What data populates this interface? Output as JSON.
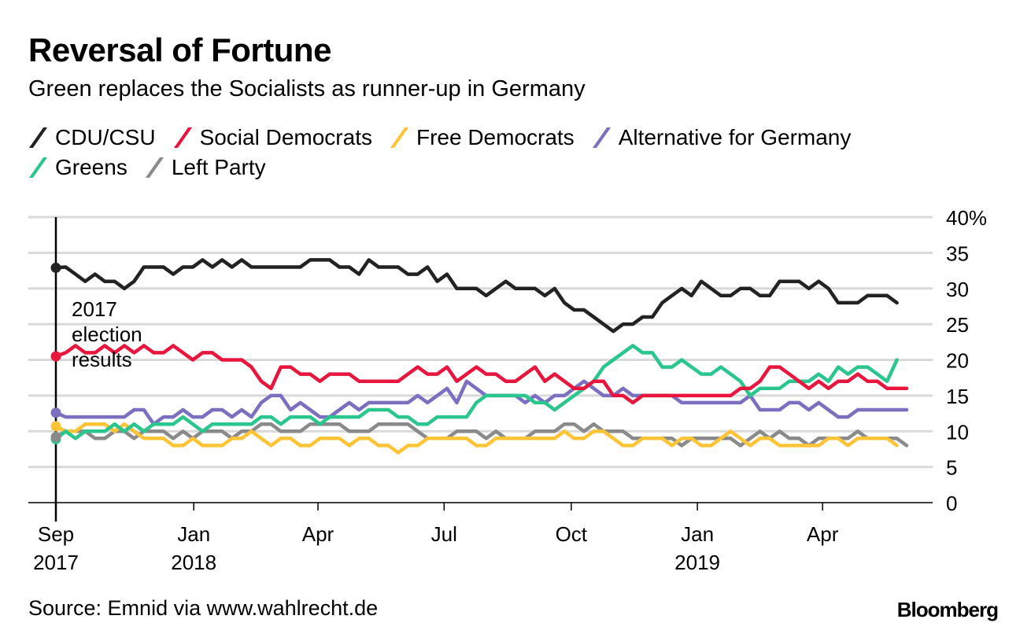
{
  "chart_data": {
    "type": "line",
    "title": "Reversal of Fortune",
    "subtitle": "Green replaces the Socialists as runner-up in Germany",
    "xlabel": "",
    "ylabel": "",
    "ylim": [
      0,
      40
    ],
    "yticks": [
      0,
      5,
      10,
      15,
      20,
      25,
      30,
      35,
      40
    ],
    "ytick_labels": [
      "0",
      "5",
      "10",
      "15",
      "20",
      "25",
      "30",
      "35",
      "40%"
    ],
    "grid": true,
    "legend_position": "top-left",
    "x_unit": "weekly poll index (0 = Sep 2017 election)",
    "xticks": [
      {
        "index": 0,
        "label": "Sep",
        "sublabel": "2017"
      },
      {
        "index": 14.1,
        "label": "Jan",
        "sublabel": "2018"
      },
      {
        "index": 26.8,
        "label": "Apr",
        "sublabel": ""
      },
      {
        "index": 39.7,
        "label": "Jul",
        "sublabel": ""
      },
      {
        "index": 52.7,
        "label": "Oct",
        "sublabel": ""
      },
      {
        "index": 65.6,
        "label": "Jan",
        "sublabel": "2019"
      },
      {
        "index": 78.4,
        "label": "Apr",
        "sublabel": ""
      }
    ],
    "annotation": {
      "index": 0,
      "lines": [
        "2017",
        "election",
        "results"
      ]
    },
    "election_results": {
      "CDU/CSU": 32.9,
      "Social Democrats": 20.5,
      "Free Democrats": 10.7,
      "Alternative for Germany": 12.6,
      "Greens": 8.9,
      "Left Party": 9.2
    },
    "series": [
      {
        "name": "CDU/CSU",
        "color": "#222222",
        "values": [
          32.9,
          33,
          32,
          31,
          32,
          31,
          31,
          30,
          31,
          33,
          33,
          33,
          32,
          33,
          33,
          34,
          33,
          34,
          33,
          34,
          33,
          33,
          33,
          33,
          33,
          33,
          34,
          34,
          34,
          33,
          33,
          32,
          34,
          33,
          33,
          33,
          32,
          32,
          33,
          31,
          32,
          30,
          30,
          30,
          29,
          30,
          31,
          30,
          30,
          30,
          29,
          30,
          28,
          27,
          27,
          26,
          25,
          24,
          25,
          25,
          26,
          26,
          28,
          29,
          30,
          29,
          31,
          30,
          29,
          29,
          30,
          30,
          29,
          29,
          31,
          31,
          31,
          30,
          31,
          30,
          28,
          28,
          28,
          29,
          29,
          29,
          28
        ]
      },
      {
        "name": "Social Democrats",
        "color": "#e8153d",
        "values": [
          20.5,
          21,
          22,
          21,
          21,
          22,
          21,
          22,
          21,
          22,
          21,
          21,
          22,
          21,
          20,
          21,
          21,
          20,
          20,
          20,
          19,
          17,
          16,
          19,
          19,
          18,
          18,
          17,
          18,
          18,
          18,
          17,
          17,
          17,
          17,
          17,
          18,
          19,
          18,
          18,
          19,
          17,
          18,
          19,
          18,
          18,
          17,
          17,
          18,
          19,
          17,
          18,
          17,
          16,
          16,
          17,
          17,
          15,
          15,
          14,
          15,
          15,
          15,
          15,
          15,
          15,
          15,
          15,
          15,
          15,
          16,
          16,
          17,
          19,
          19,
          18,
          17,
          16,
          17,
          16,
          17,
          17,
          18,
          17,
          17,
          16,
          16,
          16
        ]
      },
      {
        "name": "Free Democrats",
        "color": "#fdc437",
        "values": [
          10.7,
          10,
          10,
          11,
          11,
          11,
          10,
          11,
          10,
          9,
          9,
          9,
          8,
          8,
          9,
          8,
          8,
          8,
          9,
          9,
          10,
          9,
          8,
          9,
          9,
          8,
          8,
          9,
          9,
          9,
          8,
          9,
          9,
          8,
          8,
          7,
          8,
          8,
          9,
          9,
          9,
          9,
          9,
          8,
          8,
          9,
          9,
          9,
          9,
          9,
          9,
          9,
          10,
          9,
          9,
          10,
          10,
          9,
          8,
          8,
          9,
          9,
          9,
          8,
          9,
          9,
          8,
          8,
          9,
          10,
          9,
          8,
          9,
          9,
          8,
          8,
          8,
          8,
          8,
          9,
          9,
          8,
          9,
          9,
          9,
          9,
          8
        ]
      },
      {
        "name": "Alternative for Germany",
        "color": "#7b6fbf",
        "values": [
          12.6,
          12,
          12,
          12,
          12,
          12,
          12,
          12,
          13,
          13,
          11,
          12,
          12,
          13,
          12,
          12,
          13,
          13,
          12,
          13,
          12,
          14,
          15,
          15,
          13,
          14,
          13,
          12,
          12,
          13,
          14,
          13,
          14,
          14,
          14,
          14,
          14,
          15,
          14,
          15,
          16,
          14,
          17,
          16,
          15,
          15,
          15,
          15,
          14,
          15,
          14,
          15,
          15,
          16,
          17,
          16,
          15,
          15,
          16,
          15,
          15,
          15,
          15,
          15,
          14,
          14,
          14,
          14,
          14,
          14,
          14,
          15,
          13,
          13,
          13,
          14,
          14,
          13,
          14,
          13,
          12,
          12,
          13,
          13,
          13,
          13,
          13,
          13
        ]
      },
      {
        "name": "Greens",
        "color": "#2ac68d",
        "values": [
          8.9,
          10,
          9,
          10,
          10,
          10,
          11,
          10,
          11,
          10,
          11,
          11,
          11,
          12,
          11,
          10,
          11,
          11,
          11,
          11,
          11,
          12,
          12,
          11,
          12,
          12,
          12,
          11,
          12,
          12,
          12,
          12,
          13,
          13,
          13,
          12,
          12,
          11,
          11,
          12,
          12,
          12,
          12,
          14,
          15,
          15,
          15,
          15,
          15,
          14,
          14,
          13,
          14,
          15,
          16,
          17,
          19,
          20,
          21,
          22,
          21,
          21,
          19,
          19,
          20,
          19,
          18,
          18,
          19,
          18,
          17,
          15,
          16,
          16,
          16,
          17,
          17,
          17,
          18,
          17,
          19,
          18,
          19,
          19,
          18,
          17,
          20
        ]
      },
      {
        "name": "Left Party",
        "color": "#8a8a8a",
        "values": [
          9.2,
          10,
          10,
          10,
          9,
          9,
          10,
          10,
          9,
          10,
          10,
          10,
          9,
          10,
          9,
          10,
          10,
          10,
          9,
          10,
          10,
          11,
          11,
          10,
          10,
          10,
          11,
          11,
          11,
          11,
          10,
          10,
          10,
          11,
          11,
          11,
          11,
          10,
          9,
          9,
          9,
          10,
          10,
          10,
          9,
          10,
          9,
          9,
          9,
          10,
          10,
          10,
          11,
          11,
          10,
          11,
          10,
          10,
          10,
          9,
          9,
          9,
          9,
          9,
          8,
          9,
          9,
          9,
          9,
          9,
          8,
          9,
          10,
          9,
          10,
          9,
          9,
          8,
          9,
          9,
          9,
          9,
          10,
          9,
          9,
          9,
          9,
          8
        ]
      }
    ]
  },
  "legend": [
    {
      "label": "CDU/CSU",
      "color": "#222222"
    },
    {
      "label": "Social Democrats",
      "color": "#e8153d"
    },
    {
      "label": "Free Democrats",
      "color": "#fdc437"
    },
    {
      "label": "Alternative for Germany",
      "color": "#7b6fbf"
    },
    {
      "label": "Greens",
      "color": "#2ac68d"
    },
    {
      "label": "Left Party",
      "color": "#8a8a8a"
    }
  ],
  "footer": {
    "source": "Source: Emnid via www.wahlrecht.de",
    "brand": "Bloomberg"
  }
}
